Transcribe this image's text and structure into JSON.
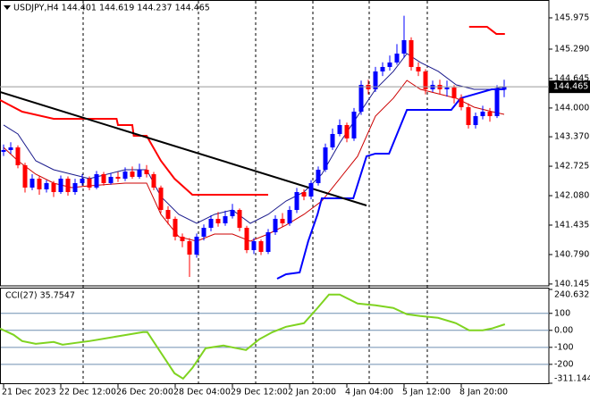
{
  "chart_data": [
    {
      "type": "candlestick",
      "title": "USDJPY,H4  144.401 144.619 144.237 144.465",
      "categories": [
        "21 Dec 2023",
        null,
        null,
        null,
        null,
        null,
        null,
        null,
        "22 Dec 12:00",
        null,
        null,
        null,
        null,
        null,
        null,
        null,
        "26 Dec 20:00",
        null,
        null,
        null,
        null,
        null,
        null,
        null,
        "28 Dec 04:00",
        null,
        null,
        null,
        null,
        null,
        null,
        null,
        "29 Dec 12:00",
        null,
        null,
        null,
        null,
        null,
        null,
        null,
        "2 Jan 20:00",
        null,
        null,
        null,
        null,
        null,
        null,
        null,
        "4 Jan 04:00",
        null,
        null,
        null,
        null,
        null,
        null,
        null,
        "5 Jan 12:00",
        null,
        null,
        null,
        null,
        null,
        null,
        null,
        "8 Jan 20:00",
        null,
        null,
        null,
        null,
        null,
        null
      ],
      "open": [
        143.04,
        143.079,
        143.137,
        142.746,
        142.257,
        142.452,
        142.218,
        142.355,
        142.159,
        142.452,
        142.159,
        142.355,
        142.452,
        142.257,
        142.55,
        142.355,
        142.492,
        142.452,
        142.609,
        142.492,
        142.648,
        142.55,
        142.257,
        141.767,
        141.572,
        141.181,
        141.083,
        140.789,
        141.181,
        141.376,
        141.572,
        141.474,
        141.63,
        141.767,
        141.376,
        140.887,
        141.083,
        140.848,
        141.278,
        141.572,
        141.474,
        141.767,
        142.159,
        142.061,
        142.355,
        142.648,
        143.137,
        143.431,
        143.627,
        143.333,
        143.92,
        144.507,
        144.409,
        144.801,
        144.899,
        144.997,
        145.192,
        145.486,
        144.899,
        144.801,
        144.409,
        144.507,
        144.409,
        144.449,
        144.214,
        144.018,
        143.627,
        143.822,
        143.92,
        143.822,
        144.401
      ],
      "high": [
        143.2,
        143.25,
        143.18,
        142.8,
        142.55,
        142.5,
        142.42,
        142.4,
        142.52,
        142.5,
        142.45,
        142.55,
        142.5,
        142.62,
        142.6,
        142.58,
        142.6,
        142.7,
        142.72,
        142.78,
        142.75,
        142.6,
        142.3,
        141.85,
        141.62,
        141.25,
        141.15,
        141.25,
        141.45,
        141.65,
        141.72,
        141.75,
        141.9,
        141.8,
        141.42,
        141.15,
        141.12,
        141.35,
        141.65,
        141.7,
        141.85,
        142.25,
        142.22,
        142.42,
        142.72,
        143.22,
        143.55,
        143.75,
        143.68,
        144.0,
        144.6,
        144.62,
        144.9,
        145.0,
        145.15,
        145.4,
        146.02,
        145.55,
        145.0,
        144.85,
        144.6,
        144.62,
        144.6,
        144.5,
        144.3,
        144.1,
        143.9,
        144.05,
        144.0,
        144.5,
        144.619
      ],
      "low": [
        142.95,
        143.0,
        142.68,
        142.15,
        142.2,
        142.1,
        142.15,
        142.05,
        142.12,
        142.08,
        142.1,
        142.3,
        142.2,
        142.22,
        142.3,
        142.32,
        142.38,
        142.4,
        142.45,
        142.45,
        142.48,
        142.2,
        141.7,
        141.45,
        141.1,
        140.95,
        140.3,
        140.72,
        141.1,
        141.3,
        141.4,
        141.42,
        141.58,
        141.3,
        140.82,
        140.8,
        140.78,
        140.8,
        141.22,
        141.4,
        141.42,
        141.7,
        141.98,
        142.0,
        142.3,
        142.6,
        143.08,
        143.38,
        143.25,
        143.28,
        143.85,
        144.3,
        144.35,
        144.7,
        144.82,
        144.95,
        145.1,
        144.82,
        144.7,
        144.3,
        144.35,
        144.3,
        144.25,
        144.1,
        143.95,
        143.55,
        143.55,
        143.75,
        143.7,
        143.78,
        144.237
      ],
      "close": [
        143.079,
        143.137,
        142.746,
        142.257,
        142.452,
        142.218,
        142.355,
        142.159,
        142.452,
        142.159,
        142.355,
        142.452,
        142.257,
        142.55,
        142.355,
        142.492,
        142.452,
        142.609,
        142.492,
        142.648,
        142.55,
        142.257,
        141.767,
        141.572,
        141.181,
        141.083,
        140.789,
        141.181,
        141.376,
        141.572,
        141.474,
        141.63,
        141.767,
        141.376,
        140.887,
        141.083,
        140.848,
        141.278,
        141.572,
        141.474,
        141.767,
        142.159,
        142.061,
        142.355,
        142.648,
        143.137,
        143.431,
        143.627,
        143.333,
        143.92,
        144.507,
        144.409,
        144.801,
        144.899,
        144.997,
        145.192,
        145.486,
        144.899,
        144.801,
        144.409,
        144.507,
        144.409,
        144.449,
        144.214,
        144.018,
        143.627,
        143.822,
        143.92,
        143.822,
        144.401,
        144.465
      ],
      "up_color": "#0000ff",
      "down_color": "#ff0000",
      "ylim": [
        140.104,
        146.366
      ],
      "yticks": [
        145.975,
        {
          "value": 145.29,
          "label": "145.290"
        },
        144.645,
        {
          "value": 144.0,
          "label": "144.000"
        },
        {
          "value": 143.37,
          "label": "143.370"
        },
        142.725,
        {
          "value": 142.08,
          "label": "142.080"
        },
        141.435,
        {
          "value": 140.79,
          "label": "140.790"
        },
        140.145
      ],
      "lines": [
        {
          "color": "#1a1a8c",
          "width": 1,
          "x": [
            0,
            2,
            4.5,
            7,
            9.5,
            12,
            17,
            20,
            22,
            24.5,
            27,
            29.5,
            32,
            34.5,
            37,
            39.5,
            42,
            44.5,
            47,
            49.5,
            52,
            54.5,
            56.4,
            58.3,
            60.8,
            63.3,
            65.8,
            68.3,
            70
          ],
          "values": [
            143.627,
            143.431,
            142.844,
            142.648,
            142.55,
            142.452,
            142.648,
            142.648,
            142.061,
            141.67,
            141.474,
            141.67,
            141.767,
            141.474,
            141.67,
            141.963,
            142.159,
            142.55,
            143.235,
            143.822,
            144.409,
            144.801,
            145.192,
            144.997,
            144.801,
            144.507,
            144.409,
            144.409,
            144.468
          ]
        },
        {
          "color": "#cc0000",
          "width": 1,
          "x": [
            0,
            2,
            4.5,
            7,
            9.5,
            12,
            17,
            20,
            22,
            24.5,
            27,
            29.5,
            32,
            34.5,
            37,
            39.5,
            42,
            44.5,
            47,
            49.5,
            52,
            54.5,
            56.4,
            58.3,
            60.8,
            63.3,
            65.8,
            68.3,
            70
          ],
          "values": [
            143.137,
            142.844,
            142.55,
            142.355,
            142.257,
            142.296,
            142.355,
            142.355,
            141.67,
            141.181,
            141.083,
            141.239,
            141.239,
            141.083,
            141.239,
            141.435,
            141.67,
            141.963,
            142.452,
            142.942,
            143.822,
            144.214,
            144.605,
            144.409,
            144.311,
            144.214,
            144.018,
            143.92,
            143.862
          ]
        },
        {
          "color": "#ff0000",
          "width": 2,
          "x": [
            -0.5,
            2.6,
            7,
            15.8,
            16,
            18,
            18.2,
            20,
            22,
            23.9,
            26.4,
            37,
            37.5,
            65.1,
            67.6,
            68.9,
            70.1
          ],
          "values": [
            144.175,
            143.92,
            143.764,
            143.764,
            143.627,
            143.627,
            143.392,
            143.392,
            142.844,
            142.452,
            142.1,
            142.1,
            null,
            145.779,
            145.779,
            145.623,
            145.623
          ]
        },
        {
          "color": "#0000ff",
          "width": 2,
          "x": [
            38.25,
            39.5,
            41.4,
            42.6,
            43.9,
            44.5,
            48.9,
            50.75,
            52,
            53.9,
            56.4,
            62.6,
            63.9,
            68.25,
            70.1
          ],
          "values": [
            140.261,
            140.358,
            140.397,
            141.083,
            141.67,
            142.022,
            142.022,
            142.942,
            143.001,
            143.001,
            143.959,
            143.959,
            144.214,
            144.409,
            144.409
          ]
        },
        {
          "color": "#000000",
          "width": 2,
          "x": [
            -0.5,
            50.75
          ],
          "values": [
            144.351,
            141.865
          ]
        }
      ]
    },
    {
      "type": "line",
      "label": "CCI(27) 35.7547",
      "color": "#7fd320",
      "x": [
        -0.5,
        1.4,
        2.6,
        4.5,
        7,
        8.25,
        10.1,
        12,
        15.75,
        19.5,
        20.1,
        22,
        23.9,
        25.1,
        26.4,
        28.25,
        30.75,
        32.6,
        33.9,
        35.75,
        37.6,
        39.5,
        42,
        43.9,
        45.5,
        47,
        49.5,
        52,
        54.5,
        56.4,
        58.25,
        60.75,
        63.25,
        65.1,
        67,
        68.25,
        70.1
      ],
      "values": [
        10.5,
        -26.3,
        -63.2,
        -78.9,
        -68.4,
        -84.2,
        -73.7,
        -63.2,
        -36.8,
        -10.5,
        -10.5,
        -131.6,
        -252.6,
        -284.2,
        -221.1,
        -105.3,
        -89.5,
        -105.3,
        -115.8,
        -52.6,
        -10.5,
        21.1,
        42.1,
        131.6,
        210.5,
        210.5,
        157.9,
        147.4,
        131.6,
        94.7,
        84.2,
        73.7,
        42.1,
        0,
        0,
        10.5,
        35.7547
      ],
      "ylim": [
        -311.1446,
        240.6325
      ],
      "yticks": [
        240.6325,
        100,
        {
          "value": 0,
          "label": "0.00"
        },
        -100,
        -200,
        -311.1446
      ]
    }
  ]
}
